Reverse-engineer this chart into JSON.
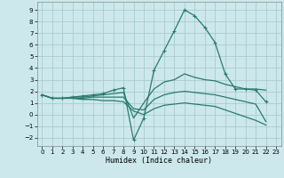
{
  "xlabel": "Humidex (Indice chaleur)",
  "background_color": "#cce8ec",
  "grid_color": "#aacccc",
  "line_color": "#2a7a70",
  "xlim": [
    -0.5,
    23.5
  ],
  "ylim": [
    -2.7,
    9.7
  ],
  "xticks": [
    0,
    1,
    2,
    3,
    4,
    5,
    6,
    7,
    8,
    9,
    10,
    11,
    12,
    13,
    14,
    15,
    16,
    17,
    18,
    19,
    20,
    21,
    22,
    23
  ],
  "yticks": [
    -2,
    -1,
    0,
    1,
    2,
    3,
    4,
    5,
    6,
    7,
    8,
    9
  ],
  "lines": [
    {
      "x": [
        0,
        1,
        2,
        3,
        4,
        5,
        6,
        7,
        8,
        9,
        10,
        11,
        12,
        13,
        14,
        15,
        16,
        17,
        18,
        19,
        20,
        21,
        22
      ],
      "y": [
        1.7,
        1.4,
        1.4,
        1.5,
        1.6,
        1.7,
        1.8,
        2.1,
        2.3,
        -2.2,
        -0.3,
        3.8,
        5.5,
        7.2,
        9.0,
        8.5,
        7.5,
        6.2,
        3.5,
        2.2,
        2.2,
        2.1,
        1.1
      ],
      "has_markers": true
    },
    {
      "x": [
        0,
        1,
        2,
        3,
        4,
        5,
        6,
        7,
        8,
        9,
        10,
        11,
        12,
        13,
        14,
        15,
        16,
        17,
        18,
        19,
        20,
        21,
        22
      ],
      "y": [
        1.7,
        1.4,
        1.4,
        1.5,
        1.5,
        1.6,
        1.7,
        1.8,
        1.9,
        -0.3,
        1.0,
        2.2,
        2.8,
        3.0,
        3.5,
        3.2,
        3.0,
        2.9,
        2.6,
        2.4,
        2.2,
        2.2,
        2.1
      ],
      "has_markers": false
    },
    {
      "x": [
        0,
        1,
        2,
        3,
        4,
        5,
        6,
        7,
        8,
        9,
        10,
        11,
        12,
        13,
        14,
        15,
        16,
        17,
        18,
        19,
        20,
        21,
        22
      ],
      "y": [
        1.7,
        1.4,
        1.4,
        1.4,
        1.4,
        1.5,
        1.5,
        1.5,
        1.5,
        0.5,
        0.4,
        1.3,
        1.7,
        1.9,
        2.0,
        1.9,
        1.8,
        1.7,
        1.5,
        1.3,
        1.1,
        0.9,
        -0.6
      ],
      "has_markers": false
    },
    {
      "x": [
        0,
        1,
        2,
        3,
        4,
        5,
        6,
        7,
        8,
        9,
        10,
        11,
        12,
        13,
        14,
        15,
        16,
        17,
        18,
        19,
        20,
        21,
        22
      ],
      "y": [
        1.7,
        1.4,
        1.4,
        1.4,
        1.3,
        1.3,
        1.2,
        1.2,
        1.1,
        0.3,
        0.0,
        0.5,
        0.8,
        0.9,
        1.0,
        0.9,
        0.8,
        0.7,
        0.4,
        0.1,
        -0.2,
        -0.5,
        -0.9
      ],
      "has_markers": false
    }
  ]
}
